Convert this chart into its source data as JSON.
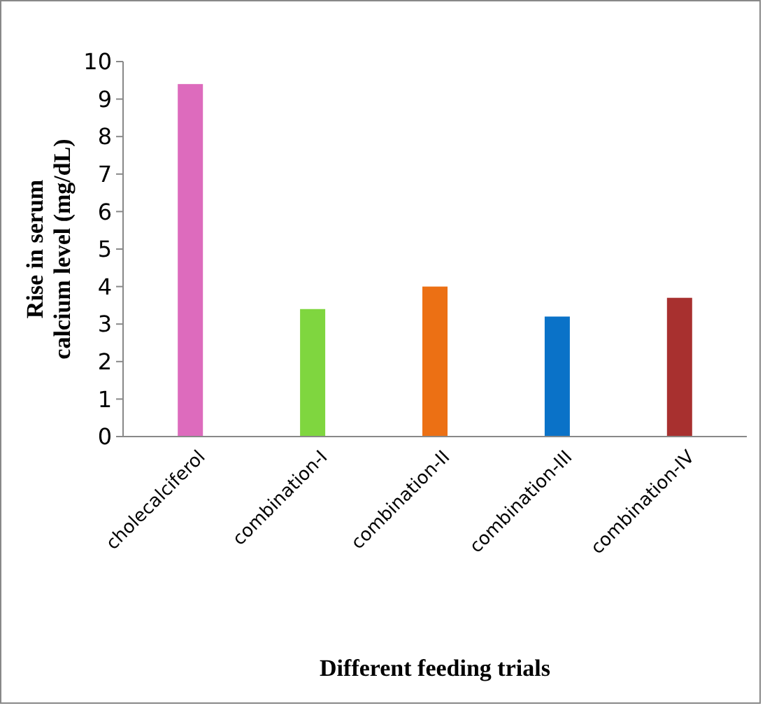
{
  "chart_data": {
    "type": "bar",
    "xlabel": "Different feeding trials",
    "ylabel": "Rise in serum calcium level (mg/dL)",
    "categories": [
      "cholecalciferol",
      "combination-I",
      "combination-II",
      "combination-III",
      "combination-IV"
    ],
    "values": [
      9.4,
      3.4,
      4.0,
      3.2,
      3.7
    ],
    "colors": [
      "#dd6bbd",
      "#7fd63f",
      "#ec7014",
      "#0a72c8",
      "#a8302f"
    ],
    "ylim": [
      0,
      10
    ],
    "yticks": [
      0,
      1,
      2,
      3,
      4,
      5,
      6,
      7,
      8,
      9,
      10
    ],
    "grid": false
  }
}
